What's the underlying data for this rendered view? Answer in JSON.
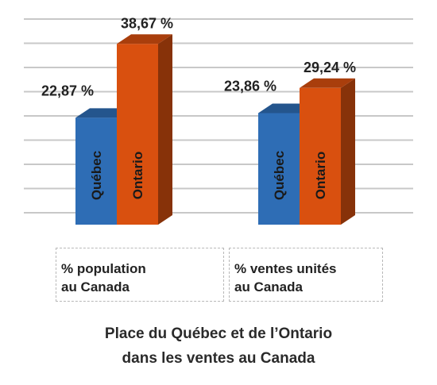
{
  "chart_data": {
    "type": "bar",
    "categories": [
      "% population au Canada",
      "% ventes unités au Canada"
    ],
    "category_lines": [
      [
        "% population",
        "au Canada"
      ],
      [
        "% ventes unités",
        "au Canada"
      ]
    ],
    "series": [
      {
        "name": "Québec",
        "values": [
          22.87,
          23.86
        ],
        "labels": [
          "22,87 %",
          "23,86 %"
        ],
        "color": "#2e6db5"
      },
      {
        "name": "Ontario",
        "values": [
          38.67,
          29.24
        ],
        "labels": [
          "38,67 %",
          "29,24 %"
        ],
        "color": "#d9500f"
      }
    ],
    "ylim": [
      0,
      45
    ],
    "grid": true,
    "title_lines": [
      "Place du Québec et de l’Ontario",
      "dans les ventes au Canada"
    ]
  }
}
